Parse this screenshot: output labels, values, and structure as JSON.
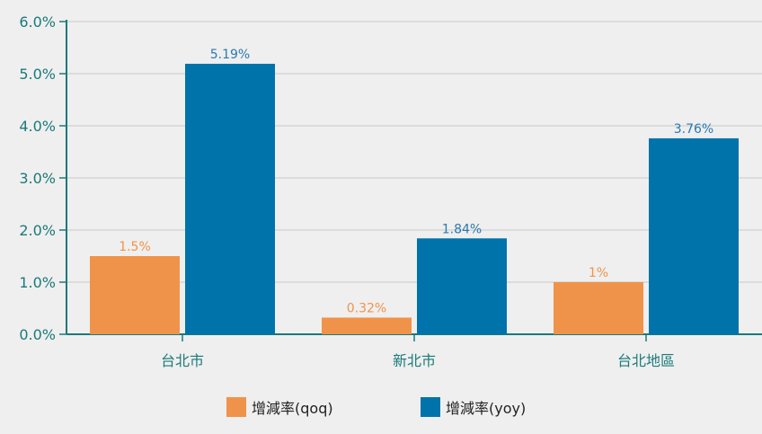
{
  "chart_data": {
    "type": "bar",
    "categories": [
      "台北市",
      "新北市",
      "台北地區"
    ],
    "series": [
      {
        "name": "增減率(qoq)",
        "values": [
          1.5,
          0.32,
          1.0
        ],
        "labels": [
          "1.5%",
          "0.32%",
          "1%"
        ],
        "color": "#f0934a",
        "label_color": "#f0934a"
      },
      {
        "name": "增減率(yoy)",
        "values": [
          5.19,
          1.84,
          3.76
        ],
        "labels": [
          "5.19%",
          "1.84%",
          "3.76%"
        ],
        "color": "#0073ab",
        "label_color": "#2a7ab0"
      }
    ],
    "ylim": [
      0,
      6
    ],
    "yticks": [
      0,
      1,
      2,
      3,
      4,
      5,
      6
    ],
    "ytick_labels": [
      "0.0%",
      "1.0%",
      "2.0%",
      "3.0%",
      "4.0%",
      "5.0%",
      "6.0%"
    ],
    "xlabel": "",
    "ylabel": "",
    "grid": true,
    "legend_position": "bottom",
    "colors": {
      "axis": "#1a7a78",
      "grid": "#c8c8c8",
      "tick_text": "#1a7a78"
    }
  }
}
